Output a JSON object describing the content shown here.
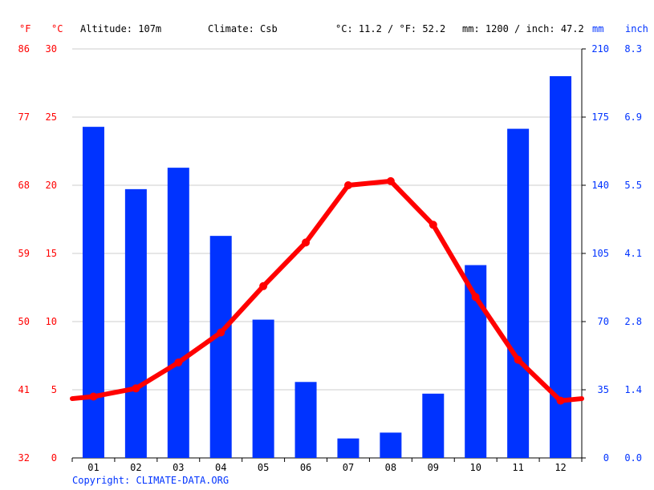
{
  "header": {
    "unit_f": "°F",
    "unit_c": "°C",
    "altitude": "Altitude: 107m",
    "climate": "Climate: Csb",
    "temp_avg": "°C: 11.2 / °F: 52.2",
    "precip_total": "mm: 1200 / inch: 47.2",
    "unit_mm": "mm",
    "unit_inch": "inch"
  },
  "copyright": "Copyright: CLIMATE-DATA.ORG",
  "colors": {
    "temperature": "#ff0000",
    "precipitation": "#0033ff",
    "grid": "#cccccc"
  },
  "chart_data": {
    "type": "bar",
    "categories": [
      "01",
      "02",
      "03",
      "04",
      "05",
      "06",
      "07",
      "08",
      "09",
      "10",
      "11",
      "12"
    ],
    "series": [
      {
        "type": "bar",
        "axis": "mm",
        "values": [
          170,
          138,
          149,
          114,
          71,
          39,
          10,
          13,
          33,
          99,
          169,
          196
        ]
      },
      {
        "type": "line",
        "axis": "celsius",
        "values": [
          4.5,
          5.1,
          7.0,
          9.2,
          12.6,
          15.8,
          20.0,
          20.3,
          17.1,
          11.8,
          7.2,
          4.2
        ]
      }
    ],
    "axes": {
      "celsius": {
        "min": 0,
        "max": 30,
        "ticks": [
          "0",
          "5",
          "10",
          "15",
          "20",
          "25",
          "30"
        ]
      },
      "fahrenheit": {
        "ticks": [
          "32",
          "41",
          "50",
          "59",
          "68",
          "77",
          "86"
        ]
      },
      "mm": {
        "min": 0,
        "max": 210,
        "ticks": [
          "0",
          "35",
          "70",
          "105",
          "140",
          "175",
          "210"
        ]
      },
      "inch": {
        "ticks": [
          "0.0",
          "1.4",
          "2.8",
          "4.1",
          "5.5",
          "6.9",
          "8.3"
        ]
      }
    },
    "grid": true
  }
}
